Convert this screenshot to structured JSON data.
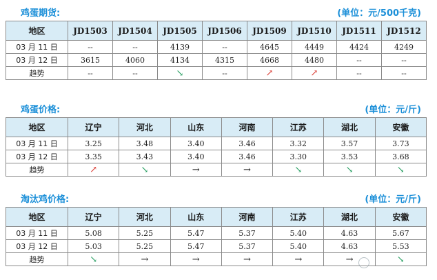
{
  "futures": {
    "title": "鸡蛋期货:",
    "unit": "(单位：元/500千克)",
    "region_header": "地区",
    "columns": [
      "JD1503",
      "JD1504",
      "JD1505",
      "JD1506",
      "JD1509",
      "JD1510",
      "JD1511",
      "JD1512"
    ],
    "rows": [
      {
        "label": "03 月 11 日",
        "values": [
          "--",
          "--",
          "4139",
          "--",
          "4645",
          "4449",
          "4424",
          "4249"
        ]
      },
      {
        "label": "03 月 12 日",
        "values": [
          "3615",
          "4060",
          "4134",
          "4315",
          "4668",
          "4480",
          "--",
          "--"
        ]
      }
    ],
    "trend_label": "趋势",
    "trend": [
      "--",
      "--",
      "down",
      "--",
      "up",
      "up",
      "--",
      "--"
    ]
  },
  "egg_price": {
    "title": "鸡蛋价格:",
    "unit": "(单位：元/斤)",
    "region_header": "地区",
    "columns": [
      "辽宁",
      "河北",
      "山东",
      "河南",
      "江苏",
      "湖北",
      "安徽"
    ],
    "rows": [
      {
        "label": "03 月 11 日",
        "values": [
          "3.25",
          "3.48",
          "3.40",
          "3.46",
          "3.32",
          "3.57",
          "3.73"
        ]
      },
      {
        "label": "03 月 12 日",
        "values": [
          "3.35",
          "3.43",
          "3.40",
          "3.46",
          "3.30",
          "3.53",
          "3.68"
        ]
      }
    ],
    "trend_label": "趋势",
    "trend": [
      "up",
      "down",
      "flat",
      "flat",
      "down",
      "down",
      "down"
    ]
  },
  "culled_hen_price": {
    "title": "淘汰鸡价格:",
    "unit": "(单位：元/斤)",
    "region_header": "地区",
    "columns": [
      "辽宁",
      "河北",
      "山东",
      "河南",
      "江苏",
      "湖北",
      "安徽"
    ],
    "rows": [
      {
        "label": "03 月 11 日",
        "values": [
          "5.08",
          "5.25",
          "5.47",
          "5.37",
          "5.40",
          "4.63",
          "5.67"
        ]
      },
      {
        "label": "03 月 12 日",
        "values": [
          "5.03",
          "5.25",
          "5.47",
          "5.37",
          "5.40",
          "4.63",
          "5.53"
        ]
      }
    ],
    "trend_label": "趋势",
    "trend": [
      "down",
      "flat",
      "flat",
      "flat",
      "flat",
      "flat",
      "down"
    ]
  },
  "arrows": {
    "up": "↗",
    "down": "↘",
    "flat": "→"
  },
  "colors": {
    "header_fill": "#d8ecf6",
    "title_blue": "#1b8fd8",
    "up": "#d9342b",
    "down": "#1d9a5a",
    "flat": "#111111"
  }
}
